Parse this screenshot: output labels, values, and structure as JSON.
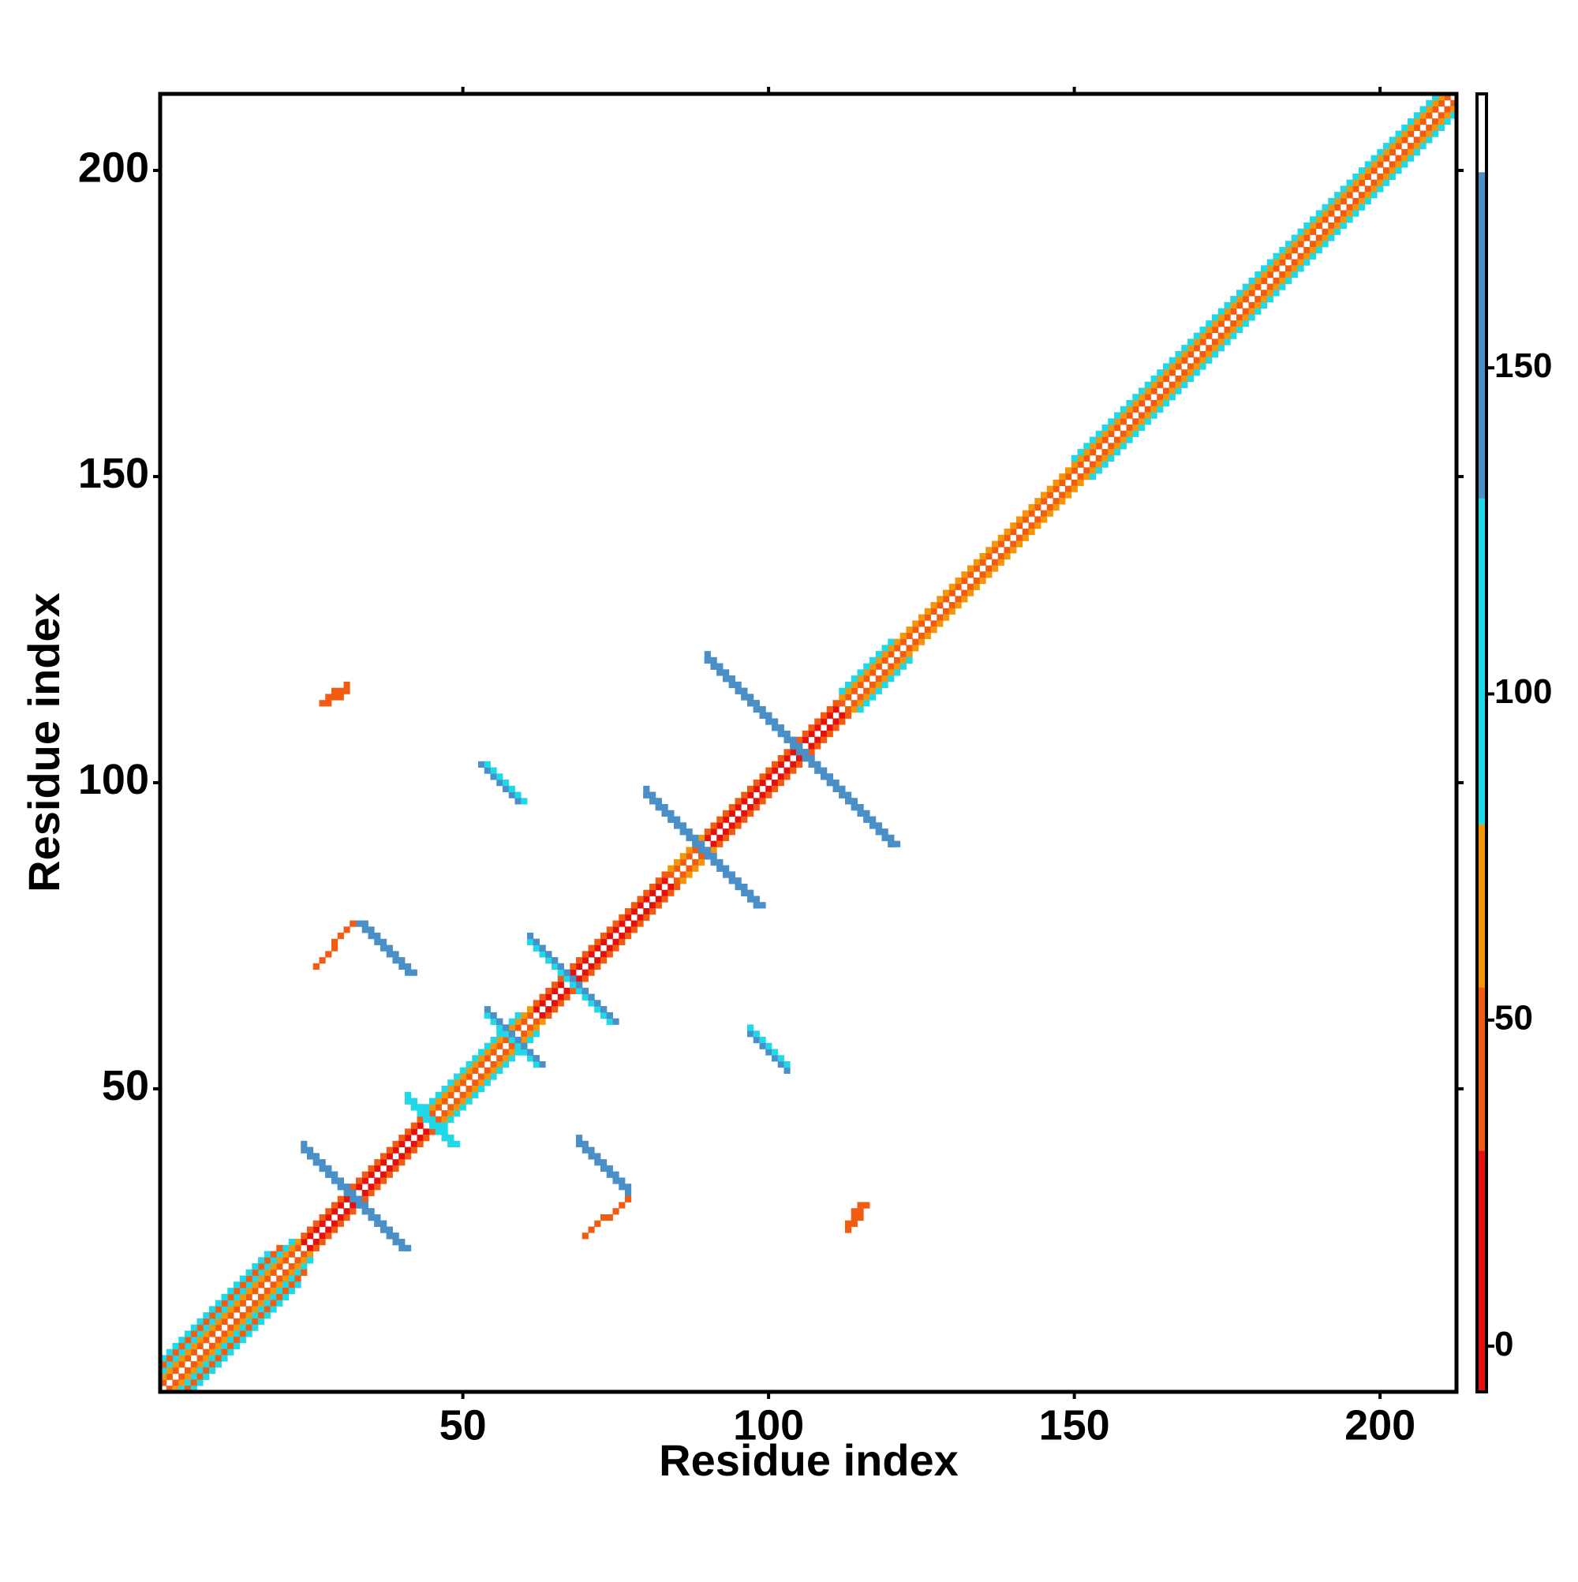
{
  "chart_data": {
    "type": "heatmap",
    "x_label": "Residue index",
    "y_label": "Residue index",
    "xlim": [
      0.5,
      212.5
    ],
    "ylim": [
      0.5,
      212.5
    ],
    "xticks": [
      50,
      100,
      150,
      200
    ],
    "yticks": [
      50,
      100,
      150,
      200
    ],
    "symmetric": true,
    "colorbar": {
      "lim": [
        -7,
        192
      ],
      "ticks": [
        0,
        50,
        100,
        150
      ],
      "bands": [
        {
          "from": -7,
          "to": 30,
          "color": "#e3100e"
        },
        {
          "from": 30,
          "to": 55,
          "color": "#f25c12"
        },
        {
          "from": 55,
          "to": 80,
          "color": "#f4960a"
        },
        {
          "from": 80,
          "to": 130,
          "color": "#1fd8e8"
        },
        {
          "from": 130,
          "to": 180,
          "color": "#4a8fc7"
        },
        {
          "from": 180,
          "to": 192,
          "color": "#ffffff"
        }
      ]
    },
    "strands": [
      {
        "x": [
          1,
          23
        ],
        "y": [
          2,
          24
        ],
        "value": 40
      },
      {
        "x": [
          24,
          43
        ],
        "y": [
          25,
          44
        ],
        "value": 10
      },
      {
        "x": [
          44,
          61
        ],
        "y": [
          45,
          62
        ],
        "value": 40
      },
      {
        "x": [
          62,
          83
        ],
        "y": [
          63,
          84
        ],
        "value": 10
      },
      {
        "x": [
          84,
          89
        ],
        "y": [
          85,
          90
        ],
        "value": 40
      },
      {
        "x": [
          90,
          111
        ],
        "y": [
          91,
          112
        ],
        "value": 10
      },
      {
        "x": [
          112,
          211
        ],
        "y": [
          113,
          212
        ],
        "value": 40
      },
      {
        "x": [
          1,
          23
        ],
        "y": [
          3,
          25
        ],
        "value": 65
      },
      {
        "x": [
          24,
          43
        ],
        "y": [
          26,
          45
        ],
        "value": 40
      },
      {
        "x": [
          44,
          61
        ],
        "y": [
          46,
          63
        ],
        "value": 65
      },
      {
        "x": [
          62,
          83
        ],
        "y": [
          64,
          85
        ],
        "value": 40
      },
      {
        "x": [
          84,
          89
        ],
        "y": [
          86,
          91
        ],
        "value": 65
      },
      {
        "x": [
          90,
          111
        ],
        "y": [
          92,
          113
        ],
        "value": 40
      },
      {
        "x": [
          112,
          210
        ],
        "y": [
          114,
          212
        ],
        "value": 65
      },
      {
        "x": [
          1,
          22
        ],
        "y": [
          4,
          25
        ],
        "value": 100
      },
      {
        "x": [
          44,
          59
        ],
        "y": [
          47,
          62
        ],
        "value": 100
      },
      {
        "x": [
          112,
          120
        ],
        "y": [
          115,
          123
        ],
        "value": 100
      },
      {
        "x": [
          150,
          209
        ],
        "y": [
          153,
          212
        ],
        "value": 100
      },
      {
        "x": [
          1,
          20
        ],
        "y": [
          5,
          24
        ],
        "value": 40
      },
      {
        "x": [
          1,
          18
        ],
        "y": [
          6,
          23
        ],
        "value": 100
      },
      {
        "x": [
          25,
          40
        ],
        "y": [
          39,
          24
        ],
        "value": 150
      },
      {
        "x": [
          26,
          41
        ],
        "y": [
          39,
          24
        ],
        "value": 150
      },
      {
        "x": [
          80,
          98
        ],
        "y": [
          98,
          80
        ],
        "value": 150
      },
      {
        "x": [
          81,
          99
        ],
        "y": [
          98,
          80
        ],
        "value": 150
      },
      {
        "x": [
          90,
          120
        ],
        "y": [
          120,
          90
        ],
        "value": 150
      },
      {
        "x": [
          91,
          121
        ],
        "y": [
          120,
          90
        ],
        "value": 150
      },
      {
        "x": [
          61,
          74
        ],
        "y": [
          74,
          61
        ],
        "value": 100
      },
      {
        "x": [
          62,
          75
        ],
        "y": [
          74,
          61
        ],
        "value": 150
      },
      {
        "x": [
          54,
          62
        ],
        "y": [
          62,
          54
        ],
        "value": 100
      },
      {
        "x": [
          55,
          63
        ],
        "y": [
          62,
          54
        ],
        "value": 150
      },
      {
        "x": [
          41,
          48
        ],
        "y": [
          48,
          41
        ],
        "value": 100
      },
      {
        "x": [
          42,
          49
        ],
        "y": [
          48,
          41
        ],
        "value": 100
      },
      {
        "x": [
          33,
          41
        ],
        "y": [
          77,
          69
        ],
        "value": 150
      },
      {
        "x": [
          34,
          42
        ],
        "y": [
          77,
          69
        ],
        "value": 150
      },
      {
        "x": [
          53,
          59
        ],
        "y": [
          103,
          97
        ],
        "value": 150
      },
      {
        "x": [
          54,
          60
        ],
        "y": [
          103,
          97
        ],
        "value": 100
      },
      {
        "x": [
          27,
          31
        ],
        "y": [
          113,
          116
        ],
        "value": 40
      },
      {
        "x": [
          28,
          31
        ],
        "y": [
          113,
          115
        ],
        "value": 40
      },
      {
        "x": [
          26,
          32
        ],
        "y": [
          70,
          77
        ],
        "value": 40
      }
    ]
  }
}
